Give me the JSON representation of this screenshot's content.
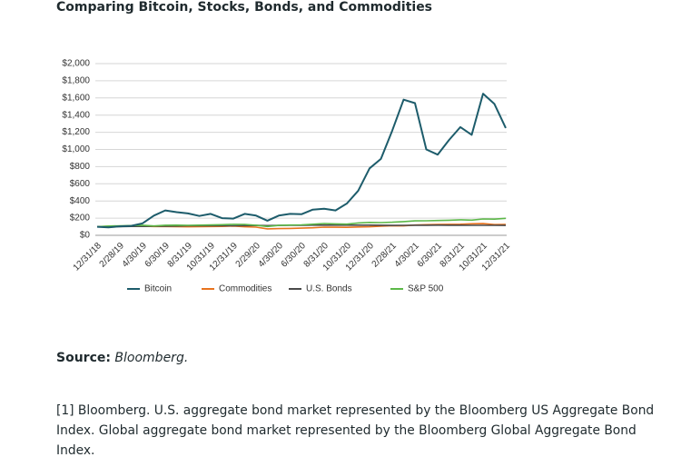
{
  "chart_data": {
    "type": "line",
    "title": "Comparing Bitcoin, Stocks, Bonds, and Commodities",
    "x": [
      "12/31/18",
      null,
      "2/28/19",
      null,
      "4/30/19",
      null,
      "6/30/19",
      null,
      "8/31/19",
      null,
      "10/31/19",
      null,
      "12/31/19",
      null,
      "2/29/20",
      null,
      "4/30/20",
      null,
      "6/30/20",
      null,
      "8/31/20",
      null,
      "10/31/20",
      null,
      "12/31/20",
      null,
      "2/28/21",
      null,
      "4/30/21",
      null,
      "6/30/21",
      null,
      "8/31/21",
      null,
      "10/31/21",
      null,
      "12/31/21"
    ],
    "series": [
      {
        "name": "Bitcoin",
        "color": "#1d5c6b",
        "values": [
          100,
          93,
          105,
          110,
          140,
          230,
          290,
          270,
          255,
          225,
          250,
          200,
          195,
          250,
          230,
          170,
          230,
          250,
          245,
          300,
          310,
          290,
          370,
          520,
          780,
          890,
          1220,
          1580,
          1540,
          1000,
          940,
          1110,
          1260,
          1170,
          1650,
          1530,
          1250
        ]
      },
      {
        "name": "Commodities",
        "color": "#e8731e",
        "values": [
          100,
          105,
          106,
          107,
          107,
          103,
          103,
          102,
          99,
          101,
          103,
          104,
          108,
          100,
          95,
          75,
          78,
          80,
          84,
          88,
          95,
          94,
          93,
          97,
          100,
          106,
          112,
          110,
          120,
          124,
          126,
          128,
          129,
          134,
          136,
          125,
          127
        ]
      },
      {
        "name": "U.S. Bonds",
        "color": "#4a4a4a",
        "values": [
          100,
          101,
          102,
          104,
          104,
          106,
          107,
          108,
          111,
          111,
          111,
          111,
          111,
          113,
          115,
          113,
          115,
          116,
          117,
          119,
          119,
          118,
          118,
          118,
          118,
          117,
          115,
          116,
          117,
          117,
          118,
          117,
          117,
          116,
          116,
          116,
          115
        ]
      },
      {
        "name": "S&P 500",
        "color": "#5cb848",
        "values": [
          100,
          108,
          111,
          113,
          117,
          109,
          117,
          118,
          116,
          118,
          121,
          124,
          128,
          127,
          117,
          103,
          115,
          120,
          122,
          129,
          138,
          133,
          130,
          144,
          150,
          148,
          152,
          160,
          168,
          169,
          173,
          176,
          181,
          177,
          190,
          188,
          198
        ]
      }
    ],
    "ylim": [
      0,
      2000
    ],
    "yticks": [
      {
        "value": 0,
        "label": "$0"
      },
      {
        "value": 200,
        "label": "$200"
      },
      {
        "value": 400,
        "label": "$400"
      },
      {
        "value": 600,
        "label": "$600"
      },
      {
        "value": 800,
        "label": "$800"
      },
      {
        "value": 1000,
        "label": "$1,000"
      },
      {
        "value": 1200,
        "label": "$1,200"
      },
      {
        "value": 1400,
        "label": "$1,400"
      },
      {
        "value": 1600,
        "label": "$1,600"
      },
      {
        "value": 1800,
        "label": "$1,800"
      },
      {
        "value": 2000,
        "label": "$2,000"
      }
    ],
    "grid": true,
    "legend": "bottom"
  },
  "source": {
    "label": "Source:",
    "text": "Bloomberg."
  },
  "footnote": "[1] Bloomberg. U.S. aggregate bond market represented by the Bloomberg US Aggregate Bond Index. Global aggregate bond market represented by the Bloomberg Global Aggregate Bond Index."
}
